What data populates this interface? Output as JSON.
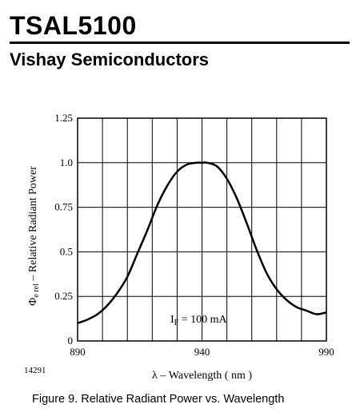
{
  "header": {
    "title": "TSAL5100",
    "subtitle": "Vishay Semiconductors"
  },
  "figure": {
    "id": "14291",
    "caption": "Figure 9.  Relative Radiant Power vs. Wavelength"
  },
  "chart_data": {
    "type": "line",
    "xlabel": "λ – Wavelength ( nm )",
    "ylabel": "Φe rel – Relative Radiant Power",
    "ylabel_main": "Φ",
    "ylabel_sub": "e rel",
    "ylabel_rest": " – Relative Radiant Power",
    "xlim": [
      890,
      990
    ],
    "ylim": [
      0,
      1.25
    ],
    "x_ticks": [
      "890",
      "940",
      "990"
    ],
    "y_ticks": [
      "0",
      "0.25",
      "0.5",
      "0.75",
      "1.0",
      "1.25"
    ],
    "grid": true,
    "annotation": "IF = 100 mA",
    "annotation_main": "I",
    "annotation_sub": "F",
    "annotation_rest": " = 100 mA",
    "series": [
      {
        "x": [
          890,
          894,
          898,
          902,
          906,
          910,
          914,
          918,
          922,
          926,
          930,
          934,
          938,
          940,
          942,
          946,
          950,
          954,
          958,
          962,
          966,
          970,
          974,
          978,
          982,
          986,
          990
        ],
        "y": [
          0.1,
          0.12,
          0.15,
          0.2,
          0.27,
          0.36,
          0.49,
          0.62,
          0.76,
          0.87,
          0.95,
          0.99,
          1.0,
          1.0,
          1.0,
          0.98,
          0.91,
          0.8,
          0.66,
          0.51,
          0.38,
          0.29,
          0.23,
          0.19,
          0.17,
          0.15,
          0.16
        ]
      }
    ]
  }
}
